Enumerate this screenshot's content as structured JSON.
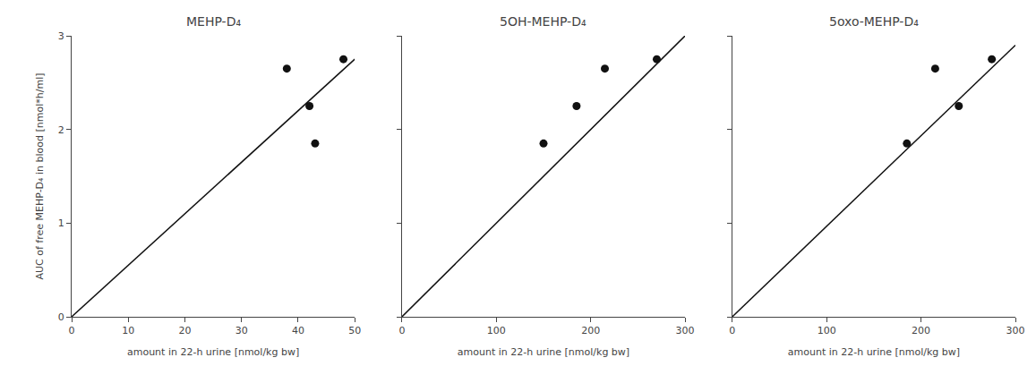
{
  "chart_data": [
    {
      "type": "scatter",
      "title": "MEHP-D₄",
      "xlabel": "amount in 22-h urine [nmol/kg bw]",
      "ylabel": "AUC of free MEHP-D₄ in blood [nmol*h/ml]",
      "xlim": [
        0,
        50
      ],
      "xticks": [
        0,
        10,
        20,
        30,
        40,
        50
      ],
      "ylim": [
        0,
        3
      ],
      "yticks": [
        0,
        1,
        2,
        3
      ],
      "grid": false,
      "series": [
        {
          "type": "scatter",
          "marker": "circle",
          "color": "#111111",
          "x": [
            38,
            42,
            43,
            48
          ],
          "values": [
            2.65,
            2.25,
            1.85,
            2.75
          ]
        },
        {
          "type": "line",
          "line_style": "solid",
          "color": "#111111",
          "x": [
            0,
            50
          ],
          "values": [
            0,
            2.75
          ]
        }
      ]
    },
    {
      "type": "scatter",
      "title": "5OH-MEHP-D₄",
      "xlabel": "amount in 22-h urine [nmol/kg bw]",
      "xlim": [
        0,
        300
      ],
      "xticks": [
        0,
        100,
        200,
        300
      ],
      "ylim": [
        0,
        3
      ],
      "yticks": [
        0,
        1,
        2,
        3
      ],
      "grid": false,
      "tick_labels": "x",
      "series": [
        {
          "type": "scatter",
          "marker": "circle",
          "color": "#111111",
          "x": [
            150,
            185,
            215,
            270
          ],
          "values": [
            1.85,
            2.25,
            2.65,
            2.75
          ]
        },
        {
          "type": "line",
          "line_style": "solid",
          "color": "#111111",
          "x": [
            0,
            300
          ],
          "values": [
            0,
            3.0
          ]
        }
      ]
    },
    {
      "type": "scatter",
      "title": "5oxo-MEHP-D₄",
      "xlabel": "amount in 22-h urine [nmol/kg bw]",
      "xlim": [
        0,
        300
      ],
      "xticks": [
        0,
        100,
        200,
        300
      ],
      "ylim": [
        0,
        3
      ],
      "yticks": [
        0,
        1,
        2,
        3
      ],
      "grid": false,
      "tick_labels": "x",
      "series": [
        {
          "type": "scatter",
          "marker": "circle",
          "color": "#111111",
          "x": [
            185,
            215,
            240,
            275
          ],
          "values": [
            1.85,
            2.65,
            2.25,
            2.75
          ]
        },
        {
          "type": "line",
          "line_style": "solid",
          "color": "#111111",
          "x": [
            0,
            300
          ],
          "values": [
            0,
            2.9
          ]
        }
      ]
    }
  ]
}
